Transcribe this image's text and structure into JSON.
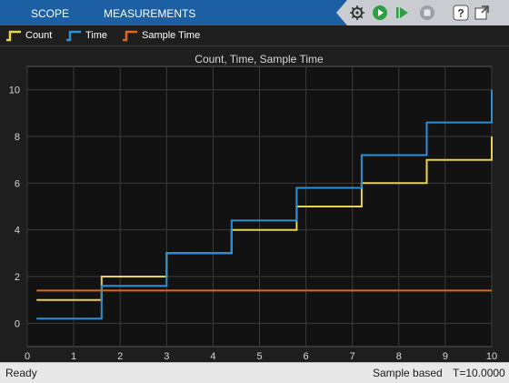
{
  "tabs": [
    "SCOPE",
    "MEASUREMENTS"
  ],
  "toolbar_icons": [
    "settings-gear-icon",
    "run-icon",
    "step-forward-icon",
    "stop-icon",
    "help-icon",
    "undock-icon"
  ],
  "legend": [
    {
      "label": "Count",
      "color": "#e8d34a"
    },
    {
      "label": "Time",
      "color": "#2f8fd6"
    },
    {
      "label": "Sample Time",
      "color": "#e0681e"
    }
  ],
  "status": {
    "left": "Ready",
    "mode": "Sample based",
    "time": "T=10.0000"
  },
  "chart_data": {
    "type": "line",
    "title": "Count, Time, Sample Time",
    "xlim": [
      0,
      10
    ],
    "ylim": [
      -1,
      11
    ],
    "xticks": [
      0,
      1,
      2,
      3,
      4,
      5,
      6,
      7,
      8,
      9,
      10
    ],
    "yticks": [
      0,
      2,
      4,
      6,
      8,
      10
    ],
    "grid": true,
    "series": [
      {
        "name": "Count",
        "color": "#e8d34a",
        "step": true,
        "x": [
          0.2,
          1.6,
          1.6,
          3.0,
          3.0,
          4.4,
          4.4,
          5.8,
          5.8,
          7.2,
          7.2,
          8.6,
          8.6,
          10.0,
          10.0
        ],
        "y": [
          1,
          1,
          2,
          2,
          3,
          3,
          4,
          4,
          5,
          5,
          6,
          6,
          7,
          7,
          8
        ]
      },
      {
        "name": "Time",
        "color": "#2f8fd6",
        "step": true,
        "x": [
          0.2,
          1.6,
          1.6,
          3.0,
          3.0,
          4.4,
          4.4,
          5.8,
          5.8,
          7.2,
          7.2,
          8.6,
          8.6,
          10.0,
          10.0
        ],
        "y": [
          0.2,
          0.2,
          1.6,
          1.6,
          3.0,
          3.0,
          4.4,
          4.4,
          5.8,
          5.8,
          7.2,
          7.2,
          8.6,
          8.6,
          10.0
        ]
      },
      {
        "name": "Sample Time",
        "color": "#e0681e",
        "step": false,
        "x": [
          0.2,
          10.0
        ],
        "y": [
          1.4,
          1.4
        ]
      }
    ]
  }
}
